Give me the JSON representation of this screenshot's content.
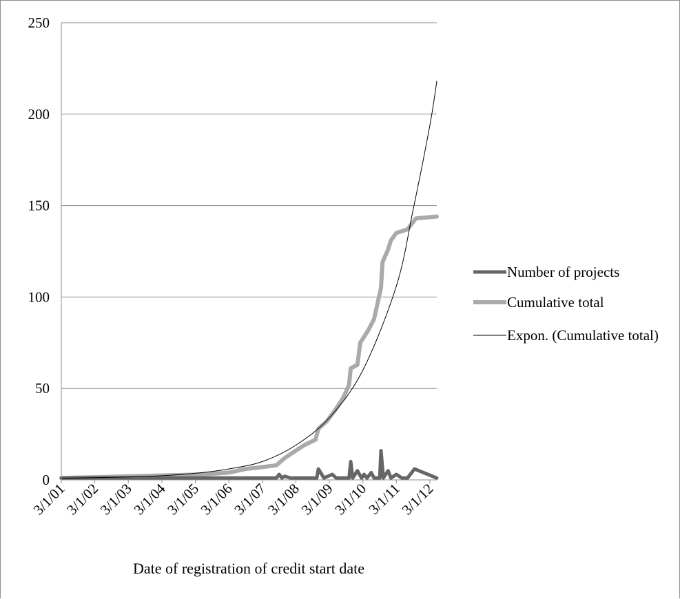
{
  "chart_data": {
    "type": "line",
    "title": "",
    "xlabel": "Date of registration of credit start date",
    "ylabel": "",
    "ylim": [
      0,
      250
    ],
    "yticks": [
      "0",
      "50",
      "100",
      "150",
      "200",
      "250"
    ],
    "xticks": [
      "3/1/01",
      "3/1/02",
      "3/1/03",
      "3/1/04",
      "3/1/05",
      "3/1/06",
      "3/1/07",
      "3/1/08",
      "3/1/09",
      "3/1/10",
      "3/1/11",
      "3/1/12"
    ],
    "xlim": [
      "2001-03-01",
      "2012-05-15"
    ],
    "grid": "horizontal",
    "legend_position": "right",
    "colors": {
      "projects": "#666666",
      "cumulative": "#aaaaaa",
      "trend": "#000000",
      "grid": "#8c8c8c",
      "axis": "#8c8c8c"
    },
    "series": [
      {
        "name": "Number of projects",
        "points": [
          [
            "2001-03-01",
            1
          ],
          [
            "2005-06-01",
            1
          ],
          [
            "2007-08-01",
            1
          ],
          [
            "2007-09-01",
            3
          ],
          [
            "2007-10-01",
            1
          ],
          [
            "2007-11-01",
            2
          ],
          [
            "2008-01-01",
            1
          ],
          [
            "2008-10-15",
            1
          ],
          [
            "2008-11-01",
            6
          ],
          [
            "2009-01-01",
            1
          ],
          [
            "2009-04-01",
            3
          ],
          [
            "2009-05-15",
            1
          ],
          [
            "2009-10-01",
            1
          ],
          [
            "2009-10-20",
            10
          ],
          [
            "2009-11-10",
            1
          ],
          [
            "2010-01-01",
            5
          ],
          [
            "2010-02-15",
            1
          ],
          [
            "2010-03-15",
            3
          ],
          [
            "2010-04-15",
            1
          ],
          [
            "2010-06-01",
            4
          ],
          [
            "2010-07-01",
            1
          ],
          [
            "2010-09-01",
            1
          ],
          [
            "2010-09-15",
            16
          ],
          [
            "2010-10-10",
            1
          ],
          [
            "2010-12-01",
            5
          ],
          [
            "2011-01-01",
            1
          ],
          [
            "2011-03-01",
            3
          ],
          [
            "2011-05-01",
            1
          ],
          [
            "2011-07-01",
            1
          ],
          [
            "2011-09-15",
            6
          ],
          [
            "2012-05-15",
            1
          ]
        ]
      },
      {
        "name": "Cumulative total",
        "points": [
          [
            "2001-03-01",
            1
          ],
          [
            "2005-06-01",
            3
          ],
          [
            "2006-03-01",
            4
          ],
          [
            "2006-09-01",
            6
          ],
          [
            "2007-03-01",
            7
          ],
          [
            "2007-08-01",
            8
          ],
          [
            "2007-11-01",
            12
          ],
          [
            "2008-03-01",
            16
          ],
          [
            "2008-06-01",
            19
          ],
          [
            "2008-10-01",
            22
          ],
          [
            "2008-11-01",
            28
          ],
          [
            "2009-02-01",
            32
          ],
          [
            "2009-05-01",
            38
          ],
          [
            "2009-08-01",
            45
          ],
          [
            "2009-10-01",
            52
          ],
          [
            "2009-10-20",
            61
          ],
          [
            "2010-01-01",
            63
          ],
          [
            "2010-02-01",
            75
          ],
          [
            "2010-05-01",
            82
          ],
          [
            "2010-07-01",
            88
          ],
          [
            "2010-08-01",
            95
          ],
          [
            "2010-09-15",
            105
          ],
          [
            "2010-10-01",
            119
          ],
          [
            "2010-12-01",
            126
          ],
          [
            "2011-01-01",
            131
          ],
          [
            "2011-03-01",
            135
          ],
          [
            "2011-07-01",
            137
          ],
          [
            "2011-10-01",
            143
          ],
          [
            "2012-05-15",
            144
          ]
        ]
      },
      {
        "name": "Expon. (Cumulative total)",
        "points": [
          [
            "2001-03-01",
            0.9
          ],
          [
            "2002-03-01",
            1.2
          ],
          [
            "2003-03-01",
            1.6
          ],
          [
            "2004-03-01",
            2.3
          ],
          [
            "2005-03-01",
            3.6
          ],
          [
            "2006-03-01",
            6
          ],
          [
            "2007-03-01",
            10
          ],
          [
            "2008-03-01",
            19
          ],
          [
            "2009-03-01",
            34
          ],
          [
            "2010-03-01",
            60
          ],
          [
            "2011-03-01",
            106
          ],
          [
            "2011-09-01",
            148
          ],
          [
            "2012-03-01",
            194
          ],
          [
            "2012-05-15",
            218
          ]
        ]
      }
    ]
  }
}
